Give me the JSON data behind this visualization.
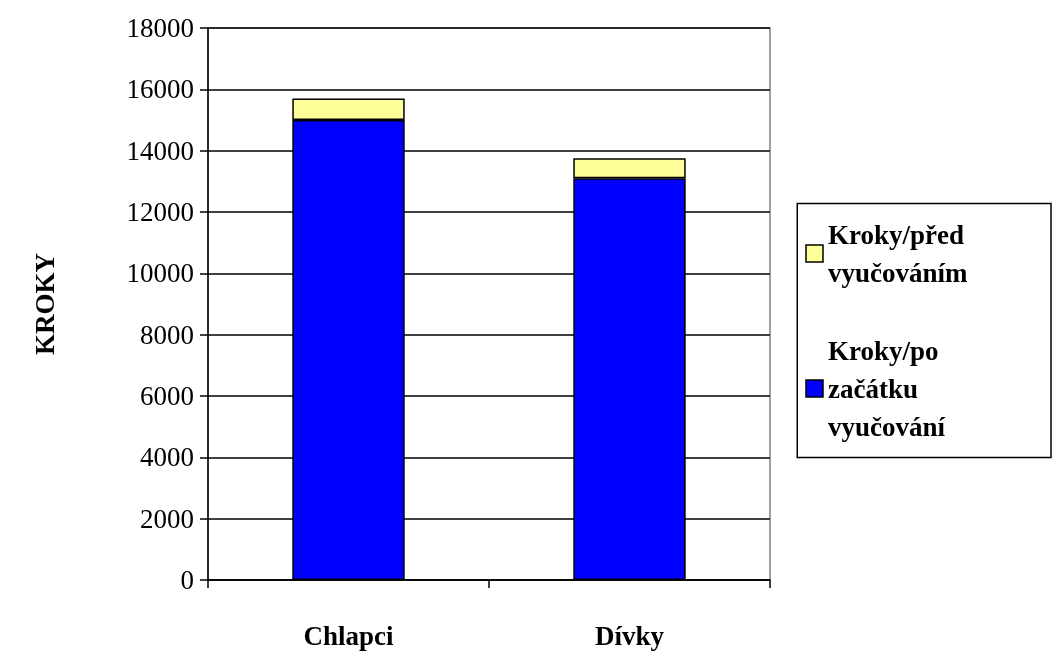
{
  "chart_data": {
    "type": "bar",
    "ylabel": "KROKY",
    "categories": [
      "Chlapci",
      "Dívky"
    ],
    "stacked": true,
    "series": [
      {
        "name": "Kroky/po začátku vyučování",
        "color": "#0000ff",
        "values": [
          15000,
          13100
        ]
      },
      {
        "name": "Kroky/před vyučováním",
        "color": "#ffff99",
        "values": [
          700,
          650
        ]
      }
    ],
    "ylim": [
      0,
      18000
    ],
    "yticks": [
      0,
      2000,
      4000,
      6000,
      8000,
      10000,
      12000,
      14000,
      16000,
      18000
    ],
    "grid": "y",
    "legend": "right"
  }
}
